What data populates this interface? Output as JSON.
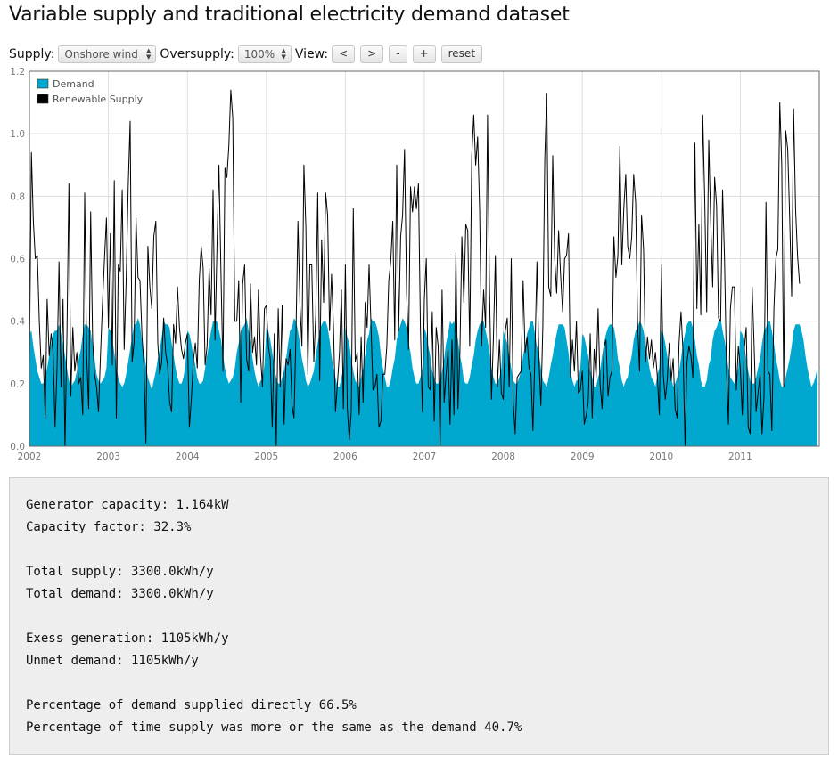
{
  "page": {
    "title": "Variable supply and traditional electricity demand dataset"
  },
  "controls": {
    "supply_label": "Supply:",
    "supply_value": "Onshore wind",
    "oversupply_label": "Oversupply:",
    "oversupply_value": "100%",
    "view_label": "View:",
    "buttons": {
      "prev": "<",
      "next": ">",
      "zoom_out": "-",
      "zoom_in": "+",
      "reset": "reset"
    }
  },
  "chart_data": {
    "type": "area",
    "title": "",
    "xlabel": "",
    "ylabel": "",
    "x_range": [
      2002,
      2012
    ],
    "xticks": [
      "2002",
      "2003",
      "2004",
      "2005",
      "2006",
      "2007",
      "2008",
      "2009",
      "2010",
      "2011"
    ],
    "ylim": [
      0,
      1.2
    ],
    "yticks": [
      "0.0",
      "0.2",
      "0.4",
      "0.6",
      "0.8",
      "1.0",
      "1.2"
    ],
    "grid": true,
    "legend_position": "top-left",
    "colors": {
      "demand": "#00a8d0",
      "supply": "#000000"
    },
    "series": [
      {
        "name": "Demand",
        "kind": "area",
        "x_start": 2002,
        "x_step_years": 0.025,
        "values": [
          0.36,
          0.37,
          0.32,
          0.28,
          0.24,
          0.22,
          0.2,
          0.2,
          0.22,
          0.25,
          0.29,
          0.33,
          0.36,
          0.37,
          0.37,
          0.39,
          0.36,
          0.33,
          0.29,
          0.25,
          0.21,
          0.19,
          0.2,
          0.21,
          0.24,
          0.28,
          0.31,
          0.36,
          0.39,
          0.39,
          0.38,
          0.37,
          0.32,
          0.28,
          0.23,
          0.21,
          0.2,
          0.21,
          0.22,
          0.25,
          0.38,
          0.37,
          0.34,
          0.3,
          0.25,
          0.22,
          0.2,
          0.19,
          0.2,
          0.23,
          0.27,
          0.31,
          0.35,
          0.39,
          0.39,
          0.41,
          0.39,
          0.33,
          0.3,
          0.26,
          0.22,
          0.2,
          0.18,
          0.21,
          0.24,
          0.28,
          0.31,
          0.35,
          0.4,
          0.39,
          0.39,
          0.38,
          0.33,
          0.29,
          0.25,
          0.22,
          0.2,
          0.2,
          0.22,
          0.26,
          0.37,
          0.36,
          0.33,
          0.29,
          0.26,
          0.22,
          0.2,
          0.2,
          0.21,
          0.25,
          0.29,
          0.33,
          0.37,
          0.4,
          0.4,
          0.4,
          0.37,
          0.34,
          0.29,
          0.25,
          0.22,
          0.2,
          0.21,
          0.22,
          0.25,
          0.3,
          0.33,
          0.37,
          0.38,
          0.39,
          0.41,
          0.37,
          0.33,
          0.28,
          0.24,
          0.21,
          0.19,
          0.21,
          0.21,
          0.26,
          0.38,
          0.37,
          0.34,
          0.3,
          0.25,
          0.22,
          0.2,
          0.2,
          0.22,
          0.24,
          0.28,
          0.33,
          0.37,
          0.38,
          0.41,
          0.4,
          0.37,
          0.33,
          0.28,
          0.25,
          0.21,
          0.19,
          0.2,
          0.22,
          0.24,
          0.29,
          0.33,
          0.37,
          0.39,
          0.4,
          0.4,
          0.38,
          0.34,
          0.29,
          0.25,
          0.22,
          0.19,
          0.19,
          0.22,
          0.25,
          0.38,
          0.35,
          0.33,
          0.28,
          0.24,
          0.21,
          0.2,
          0.19,
          0.22,
          0.25,
          0.29,
          0.34,
          0.36,
          0.41,
          0.4,
          0.4,
          0.38,
          0.35,
          0.29,
          0.25,
          0.22,
          0.19,
          0.19,
          0.21,
          0.25,
          0.28,
          0.34,
          0.37,
          0.39,
          0.41,
          0.4,
          0.38,
          0.33,
          0.3,
          0.25,
          0.22,
          0.2,
          0.2,
          0.22,
          0.25,
          0.38,
          0.36,
          0.32,
          0.29,
          0.24,
          0.22,
          0.2,
          0.2,
          0.21,
          0.24,
          0.28,
          0.33,
          0.36,
          0.4,
          0.39,
          0.4,
          0.37,
          0.34,
          0.29,
          0.26,
          0.21,
          0.2,
          0.2,
          0.22,
          0.26,
          0.29,
          0.34,
          0.37,
          0.39,
          0.4,
          0.4,
          0.37,
          0.34,
          0.3,
          0.25,
          0.22,
          0.2,
          0.2,
          0.22,
          0.25,
          0.37,
          0.35,
          0.33,
          0.29,
          0.25,
          0.21,
          0.2,
          0.2,
          0.22,
          0.24,
          0.29,
          0.32,
          0.36,
          0.38,
          0.4,
          0.4,
          0.36,
          0.32,
          0.3,
          0.25,
          0.21,
          0.2,
          0.19,
          0.22,
          0.26,
          0.29,
          0.33,
          0.36,
          0.39,
          0.39,
          0.39,
          0.38,
          0.34,
          0.3,
          0.24,
          0.21,
          0.19,
          0.21,
          0.21,
          0.25,
          0.36,
          0.35,
          0.32,
          0.29,
          0.24,
          0.22,
          0.19,
          0.19,
          0.22,
          0.24,
          0.29,
          0.33,
          0.36,
          0.38,
          0.39,
          0.39,
          0.38,
          0.34,
          0.28,
          0.25,
          0.21,
          0.19,
          0.21,
          0.22,
          0.26,
          0.29,
          0.34,
          0.37,
          0.38,
          0.4,
          0.39,
          0.37,
          0.33,
          0.29,
          0.25,
          0.22,
          0.21,
          0.19,
          0.23,
          0.25,
          0.37,
          0.36,
          0.33,
          0.29,
          0.25,
          0.22,
          0.19,
          0.2,
          0.22,
          0.24,
          0.28,
          0.33,
          0.36,
          0.39,
          0.4,
          0.4,
          0.38,
          0.34,
          0.29,
          0.26,
          0.21,
          0.19,
          0.19,
          0.21,
          0.26,
          0.28,
          0.34,
          0.37,
          0.38,
          0.4,
          0.41,
          0.37,
          0.34,
          0.3,
          0.25,
          0.22,
          0.21,
          0.2,
          0.22,
          0.25,
          0.37,
          0.36,
          0.33,
          0.28,
          0.24,
          0.21,
          0.2,
          0.2,
          0.22,
          0.25,
          0.28,
          0.33,
          0.37,
          0.38,
          0.4,
          0.4,
          0.37,
          0.33,
          0.28,
          0.25,
          0.21,
          0.19,
          0.19,
          0.22,
          0.25,
          0.28,
          0.32,
          0.37,
          0.39,
          0.39,
          0.39,
          0.37,
          0.34,
          0.29,
          0.25,
          0.22,
          0.19,
          0.2,
          0.22,
          0.25
        ]
      },
      {
        "name": "Renewable Supply",
        "kind": "line",
        "x_start": 2002,
        "x_step_years": 0.025,
        "values": [
          0.26,
          0.94,
          0.72,
          0.6,
          0.61,
          0.4,
          0.25,
          0.29,
          0.09,
          0.47,
          0.29,
          0.36,
          0.3,
          0.06,
          0.25,
          0.59,
          0.19,
          0.47,
          0.0,
          0.36,
          0.84,
          0.16,
          0.38,
          0.24,
          0.3,
          0.2,
          0.22,
          0.1,
          0.81,
          0.29,
          0.12,
          0.75,
          0.34,
          0.23,
          0.19,
          0.11,
          0.29,
          0.46,
          0.6,
          0.73,
          0.38,
          0.68,
          0.26,
          0.85,
          0.09,
          0.58,
          0.56,
          0.82,
          0.31,
          0.53,
          0.83,
          1.04,
          0.27,
          0.33,
          0.73,
          0.54,
          0.53,
          0.35,
          0.26,
          0.01,
          0.64,
          0.51,
          0.44,
          0.67,
          0.72,
          0.33,
          0.23,
          0.27,
          0.41,
          0.3,
          0.26,
          0.14,
          0.11,
          0.39,
          0.33,
          0.51,
          0.38,
          0.31,
          0.28,
          0.33,
          0.36,
          0.06,
          0.15,
          0.27,
          0.33,
          0.25,
          0.53,
          0.64,
          0.57,
          0.26,
          0.32,
          0.57,
          0.42,
          0.82,
          0.34,
          0.64,
          0.9,
          0.55,
          0.24,
          0.89,
          0.86,
          0.96,
          1.14,
          1.05,
          0.4,
          0.4,
          0.53,
          0.14,
          0.52,
          0.58,
          0.28,
          0.24,
          0.52,
          0.3,
          0.35,
          0.26,
          0.5,
          0.29,
          0.19,
          0.44,
          0.45,
          0.32,
          0.28,
          0.06,
          0.36,
          0.0,
          0.44,
          0.19,
          0.45,
          0.07,
          0.28,
          0.26,
          0.31,
          0.13,
          0.09,
          0.36,
          0.72,
          0.45,
          0.32,
          0.9,
          0.7,
          0.23,
          0.58,
          0.58,
          0.27,
          0.42,
          0.81,
          0.21,
          0.66,
          0.46,
          0.81,
          0.74,
          0.37,
          0.55,
          0.38,
          0.11,
          0.2,
          0.3,
          0.5,
          0.12,
          0.58,
          0.12,
          0.02,
          0.11,
          0.76,
          0.27,
          0.3,
          0.1,
          0.35,
          0.14,
          0.46,
          0.38,
          0.58,
          0.38,
          0.18,
          0.19,
          0.23,
          0.06,
          0.08,
          0.23,
          0.23,
          0.32,
          0.53,
          0.59,
          0.72,
          0.34,
          0.9,
          0.37,
          0.67,
          0.74,
          0.95,
          0.49,
          0.31,
          0.83,
          0.75,
          0.83,
          0.76,
          0.84,
          0.38,
          0.11,
          0.47,
          0.6,
          0.19,
          0.18,
          0.43,
          0.08,
          0.38,
          0.32,
          0.0,
          0.5,
          0.14,
          0.23,
          0.31,
          0.07,
          0.34,
          0.1,
          0.62,
          0.12,
          0.3,
          0.67,
          0.46,
          0.71,
          0.69,
          0.32,
          0.93,
          1.06,
          0.9,
          0.99,
          0.76,
          0.32,
          0.5,
          0.38,
          1.06,
          0.5,
          0.15,
          0.35,
          0.61,
          0.19,
          0.34,
          0.17,
          0.15,
          0.37,
          0.41,
          0.19,
          0.6,
          0.14,
          0.04,
          0.22,
          0.23,
          0.24,
          0.53,
          0.3,
          0.35,
          0.25,
          0.23,
          0.05,
          0.29,
          0.59,
          0.28,
          0.13,
          0.38,
          0.92,
          1.13,
          0.51,
          0.48,
          0.93,
          0.6,
          0.49,
          0.69,
          0.55,
          0.43,
          0.6,
          0.61,
          0.68,
          0.22,
          0.34,
          0.24,
          0.4,
          0.17,
          0.18,
          0.24,
          0.07,
          0.1,
          0.14,
          0.36,
          0.09,
          0.31,
          0.22,
          0.44,
          0.2,
          0.12,
          0.32,
          0.34,
          0.16,
          0.22,
          0.24,
          0.67,
          0.54,
          0.61,
          0.96,
          0.58,
          0.76,
          0.87,
          0.64,
          0.6,
          0.67,
          0.87,
          0.78,
          0.39,
          0.24,
          0.74,
          0.63,
          0.27,
          0.35,
          0.28,
          0.34,
          0.25,
          0.3,
          0.22,
          0.1,
          0.58,
          0.23,
          0.15,
          0.21,
          0.33,
          0.21,
          0.28,
          0.12,
          0.09,
          0.33,
          0.43,
          0.3,
          0.0,
          0.27,
          0.32,
          0.29,
          0.22,
          0.97,
          0.44,
          0.71,
          0.42,
          1.06,
          0.79,
          0.43,
          0.98,
          0.72,
          0.51,
          0.86,
          0.77,
          0.41,
          0.4,
          0.82,
          0.6,
          0.25,
          0.07,
          0.44,
          0.51,
          0.51,
          0.18,
          0.32,
          0.25,
          0.1,
          0.31,
          0.38,
          0.06,
          0.04,
          0.51,
          0.32,
          0.11,
          0.17,
          0.23,
          0.04,
          0.16,
          0.78,
          0.24,
          0.23,
          0.05,
          0.44,
          0.6,
          0.63,
          1.1,
          0.9,
          0.19,
          1.01,
          0.95,
          0.73,
          0.48,
          1.08,
          0.76,
          0.61,
          0.52
        ]
      }
    ]
  },
  "stats": {
    "generator_capacity": "Generator capacity: 1.164kW",
    "capacity_factor": "Capacity factor: 32.3%",
    "total_supply": "Total supply: 3300.0kWh/y",
    "total_demand": "Total demand: 3300.0kWh/y",
    "excess_generation": "Exess generation: 1105kWh/y",
    "unmet_demand": "Unmet demand: 1105kWh/y",
    "pct_direct": "Percentage of demand supplied directly 66.5%",
    "pct_time": "Percentage of time supply was more or the same as the demand 40.7%"
  }
}
